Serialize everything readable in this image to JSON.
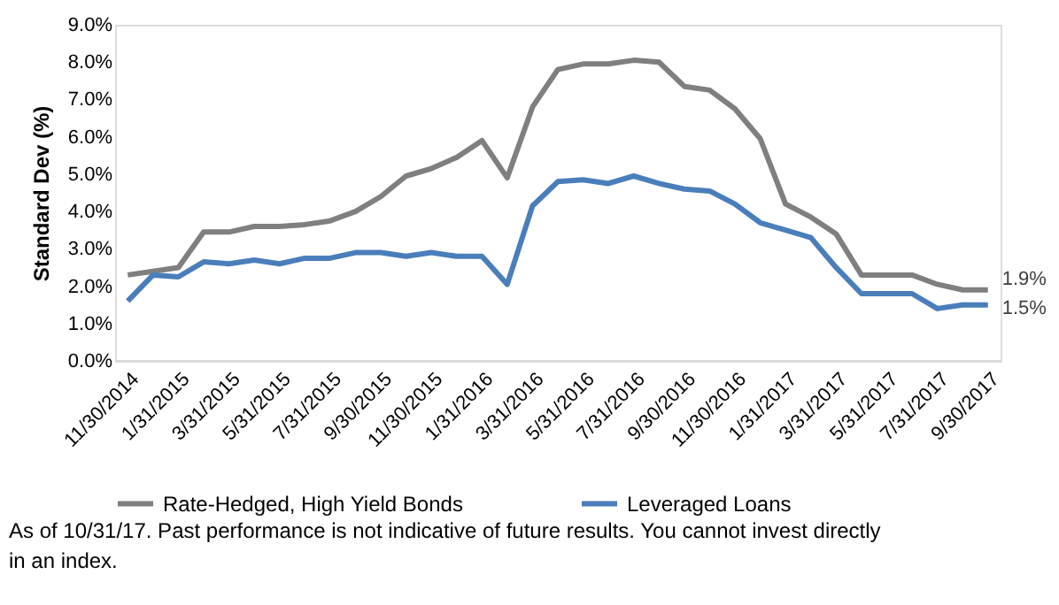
{
  "chart_data": {
    "type": "line",
    "ylabel": "Standard Dev (%)",
    "categories": [
      "11/30/2014",
      null,
      "1/31/2015",
      null,
      "3/31/2015",
      null,
      "5/31/2015",
      null,
      "7/31/2015",
      null,
      "9/30/2015",
      null,
      "11/30/2015",
      null,
      "1/31/2016",
      null,
      "3/31/2016",
      null,
      "5/31/2016",
      null,
      "7/31/2016",
      null,
      "9/30/2016",
      null,
      "11/30/2016",
      null,
      "1/31/2017",
      null,
      "3/31/2017",
      null,
      "5/31/2017",
      null,
      "7/31/2017",
      null,
      "9/30/2017"
    ],
    "series": [
      {
        "name": "Rate-Hedged, High Yield Bonds",
        "color": "#7f7f7f",
        "values": [
          2.3,
          2.4,
          2.5,
          3.45,
          3.45,
          3.6,
          3.6,
          3.65,
          3.75,
          4.0,
          4.4,
          4.95,
          5.15,
          5.45,
          5.9,
          4.9,
          6.8,
          7.8,
          7.95,
          7.95,
          8.05,
          8.0,
          7.35,
          7.25,
          6.75,
          5.95,
          4.2,
          3.85,
          3.4,
          2.3,
          2.3,
          2.3,
          2.05,
          1.9,
          1.9
        ],
        "value_labels": [
          null,
          null,
          null,
          null,
          null,
          null,
          null,
          null,
          null,
          null,
          null,
          null,
          null,
          null,
          null,
          null,
          null,
          null,
          null,
          null,
          null,
          null,
          null,
          null,
          null,
          null,
          null,
          null,
          null,
          null,
          null,
          null,
          null,
          null,
          "1.9%"
        ]
      },
      {
        "name": "Leveraged Loans",
        "color": "#4a7ebb",
        "values": [
          1.6,
          2.3,
          2.25,
          2.65,
          2.6,
          2.7,
          2.6,
          2.75,
          2.75,
          2.9,
          2.9,
          2.8,
          2.9,
          2.8,
          2.8,
          2.05,
          4.15,
          4.8,
          4.85,
          4.75,
          4.95,
          4.75,
          4.6,
          4.55,
          4.2,
          3.7,
          3.5,
          3.3,
          2.5,
          1.8,
          1.8,
          1.8,
          1.4,
          1.5,
          1.5
        ],
        "value_labels": [
          null,
          null,
          null,
          null,
          null,
          null,
          null,
          null,
          null,
          null,
          null,
          null,
          null,
          null,
          null,
          null,
          null,
          null,
          null,
          null,
          null,
          null,
          null,
          null,
          null,
          null,
          null,
          null,
          null,
          null,
          null,
          null,
          null,
          null,
          "1.5%"
        ]
      }
    ],
    "ylim": [
      0,
      9
    ],
    "yticks": [
      {
        "value": 0,
        "label": "0.0%"
      },
      {
        "value": 1,
        "label": "1.0%"
      },
      {
        "value": 2,
        "label": "2.0%"
      },
      {
        "value": 3,
        "label": "3.0%"
      },
      {
        "value": 4,
        "label": "4.0%"
      },
      {
        "value": 5,
        "label": "5.0%"
      },
      {
        "value": 6,
        "label": "6.0%"
      },
      {
        "value": 7,
        "label": "7.0%"
      },
      {
        "value": 8,
        "label": "8.0%"
      },
      {
        "value": 9,
        "label": "9.0%"
      }
    ],
    "grid": false,
    "legend": "bottom",
    "marker": "none",
    "line_style": "solid",
    "annotations": [
      "As of 10/31/17. Past performance is not indicative of future results. You cannot invest directly in an index."
    ]
  }
}
